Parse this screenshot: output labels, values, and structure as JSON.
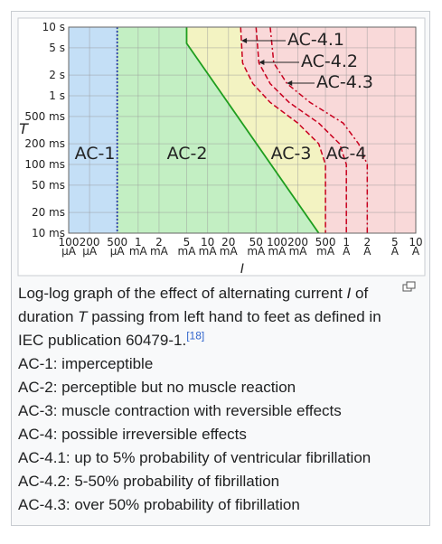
{
  "chart_data": {
    "type": "line",
    "x_label": "I",
    "y_label": "T",
    "xscale": "log",
    "yscale": "log",
    "grid": true,
    "xlim": [
      0.1,
      10000
    ],
    "ylim": [
      10,
      10000
    ],
    "xticks": [
      {
        "value": 0.1,
        "label": "100 µA"
      },
      {
        "value": 0.2,
        "label": "200 µA"
      },
      {
        "value": 0.5,
        "label": "500 µA"
      },
      {
        "value": 1,
        "label": "1 mA"
      },
      {
        "value": 2,
        "label": "2 mA"
      },
      {
        "value": 5,
        "label": "5 mA"
      },
      {
        "value": 10,
        "label": "10 mA"
      },
      {
        "value": 20,
        "label": "20 mA"
      },
      {
        "value": 50,
        "label": "50 mA"
      },
      {
        "value": 100,
        "label": "100 mA"
      },
      {
        "value": 200,
        "label": "200 mA"
      },
      {
        "value": 500,
        "label": "500 mA"
      },
      {
        "value": 1000,
        "label": "1 A"
      },
      {
        "value": 2000,
        "label": "2 A"
      },
      {
        "value": 5000,
        "label": "5 A"
      },
      {
        "value": 10000,
        "label": "10 A"
      }
    ],
    "yticks": [
      {
        "value": 10,
        "label": "10 ms"
      },
      {
        "value": 20,
        "label": "20 ms"
      },
      {
        "value": 50,
        "label": "50 ms"
      },
      {
        "value": 100,
        "label": "100 ms"
      },
      {
        "value": 200,
        "label": "200 ms"
      },
      {
        "value": 500,
        "label": "500 ms"
      },
      {
        "value": 1000,
        "label": "1 s"
      },
      {
        "value": 2000,
        "label": "2 s"
      },
      {
        "value": 5000,
        "label": "5 s"
      },
      {
        "value": 10000,
        "label": "10 s"
      }
    ],
    "regions": [
      "AC-1",
      "AC-2",
      "AC-3",
      "AC-4"
    ],
    "region_colors": [
      "#c4dff6",
      "#c3efc3",
      "#f3f3c2",
      "#f9d9d9"
    ],
    "series": [
      {
        "color": "#2a3fa8",
        "dash": "dot",
        "x": [
          0.5,
          0.5
        ],
        "y": [
          10000,
          10
        ]
      },
      {
        "color": "#1f9e1f",
        "dash": "solid",
        "x": [
          5,
          5,
          400
        ],
        "y": [
          10000,
          5800,
          10
        ]
      },
      {
        "name": "AC-4.1",
        "color": "#c8001e",
        "dash": "dash",
        "x": [
          30,
          32,
          45,
          80,
          200,
          400,
          500,
          500
        ],
        "y": [
          10000,
          3000,
          1500,
          800,
          400,
          200,
          100,
          10
        ]
      },
      {
        "name": "AC-4.2",
        "color": "#c8001e",
        "dash": "dash",
        "x": [
          50,
          55,
          80,
          150,
          400,
          800,
          1000,
          1000
        ],
        "y": [
          10000,
          3000,
          1500,
          800,
          400,
          200,
          100,
          10
        ]
      },
      {
        "name": "AC-4.3",
        "color": "#c8001e",
        "dash": "dashdot",
        "x": [
          80,
          90,
          140,
          300,
          900,
          1500,
          2000,
          2000
        ],
        "y": [
          10000,
          3000,
          1500,
          800,
          400,
          200,
          100,
          10
        ]
      }
    ]
  },
  "caption": {
    "description": [
      "Log-log graph of the effect of alternating current ",
      "I",
      " of duration ",
      "T",
      " passing from left hand to feet as defined in IEC publication 60479-1.",
      "[18]"
    ],
    "items": [
      "AC-1: imperceptible",
      "AC-2: perceptible but no muscle reaction",
      "AC-3: muscle contraction with reversible effects",
      "AC-4: possible irreversible effects",
      "AC-4.1: up to 5% probability of ventricular fibrillation",
      "AC-4.2: 5-50% probability of fibrillation",
      "AC-4.3: over 50% probability of fibrillation"
    ]
  }
}
